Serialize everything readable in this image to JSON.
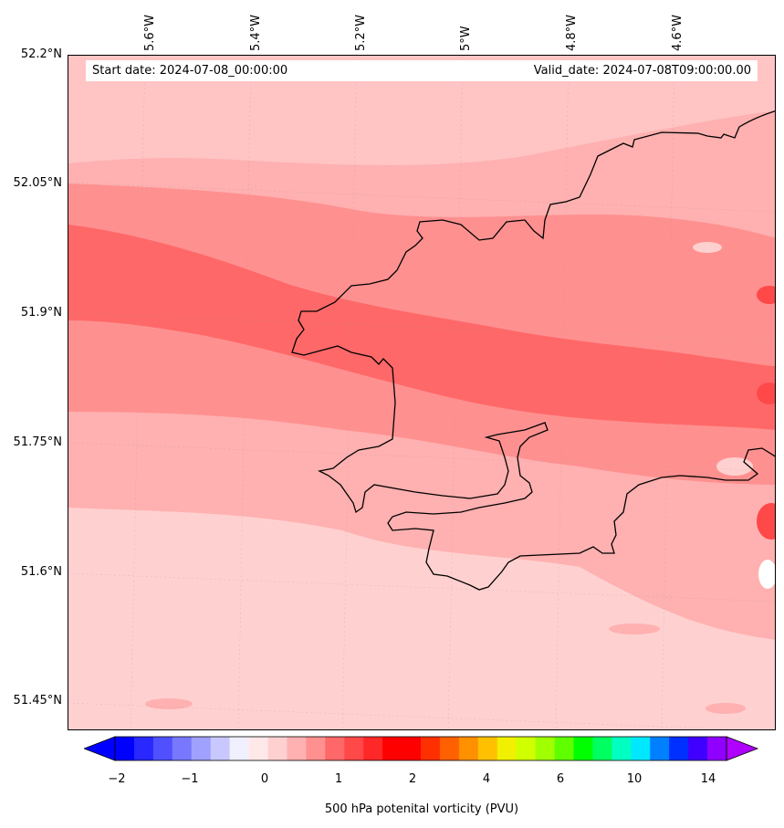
{
  "header": {
    "start_date": "Start date: 2024-07-08_00:00:00",
    "valid_date": "Valid_date: 2024-07-08T09:00:00.00"
  },
  "axes": {
    "lon_labels": [
      "5.6°W",
      "5.4°W",
      "5.2°W",
      "5°W",
      "4.8°W",
      "4.6°W"
    ],
    "lat_labels": [
      "52.2°N",
      "52.05°N",
      "51.9°N",
      "51.75°N",
      "51.6°N",
      "51.45°N"
    ]
  },
  "colorbar": {
    "label": "500 hPa potenital vorticity (PVU)",
    "tick_labels": [
      "−2",
      "−1",
      "0",
      "1",
      "2",
      "4",
      "6",
      "10",
      "14"
    ],
    "colors": [
      "#0000ff",
      "#2828ff",
      "#5050ff",
      "#7878ff",
      "#a0a0ff",
      "#c8c8ff",
      "#f0f0ff",
      "#ffe8e8",
      "#ffd0d0",
      "#ffb0b0",
      "#ff9090",
      "#ff6868",
      "#ff4848",
      "#ff2828",
      "#ff0000",
      "#ff0000",
      "#ff3000",
      "#ff6000",
      "#ff9000",
      "#ffc000",
      "#f0f000",
      "#d0ff00",
      "#a0ff00",
      "#60ff00",
      "#00ff00",
      "#00ff60",
      "#00ffc0",
      "#00e8ff",
      "#0080ff",
      "#0030ff",
      "#4000ff",
      "#9000ff"
    ],
    "extend_low_color": "#0000ff",
    "extend_high_color": "#b000ff"
  },
  "field_colors": {
    "base": "#ffd0d0",
    "light": "#ffe4e4",
    "pink": "#ffb0b0",
    "mid": "#ff9090",
    "strong": "#ff6868",
    "deep": "#ff4848",
    "coast": "#000000"
  }
}
